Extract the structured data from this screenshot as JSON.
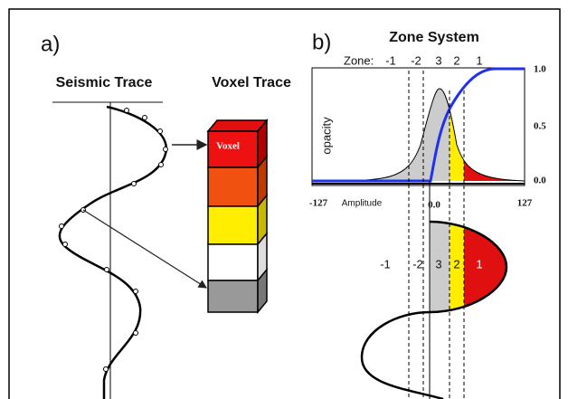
{
  "panel_a": {
    "label": "a)",
    "seismic_title": "Seismic Trace",
    "voxel_title": "Voxel Trace",
    "voxel_label": "Voxel"
  },
  "panel_b": {
    "label": "b)",
    "title": "Zone System",
    "zone_prefix": "Zone:",
    "zones_top": [
      "-1",
      "-2",
      "3",
      "2",
      "1"
    ],
    "y_axis_label": "opacity",
    "y_ticks": [
      "1.0",
      "0.5",
      "0.0"
    ],
    "x_ticks": [
      "-127",
      "0.0",
      "127"
    ],
    "x_axis_label": "Amplitude",
    "zones_bottom": [
      "-1",
      "-2",
      "3",
      "2",
      "1"
    ]
  }
}
